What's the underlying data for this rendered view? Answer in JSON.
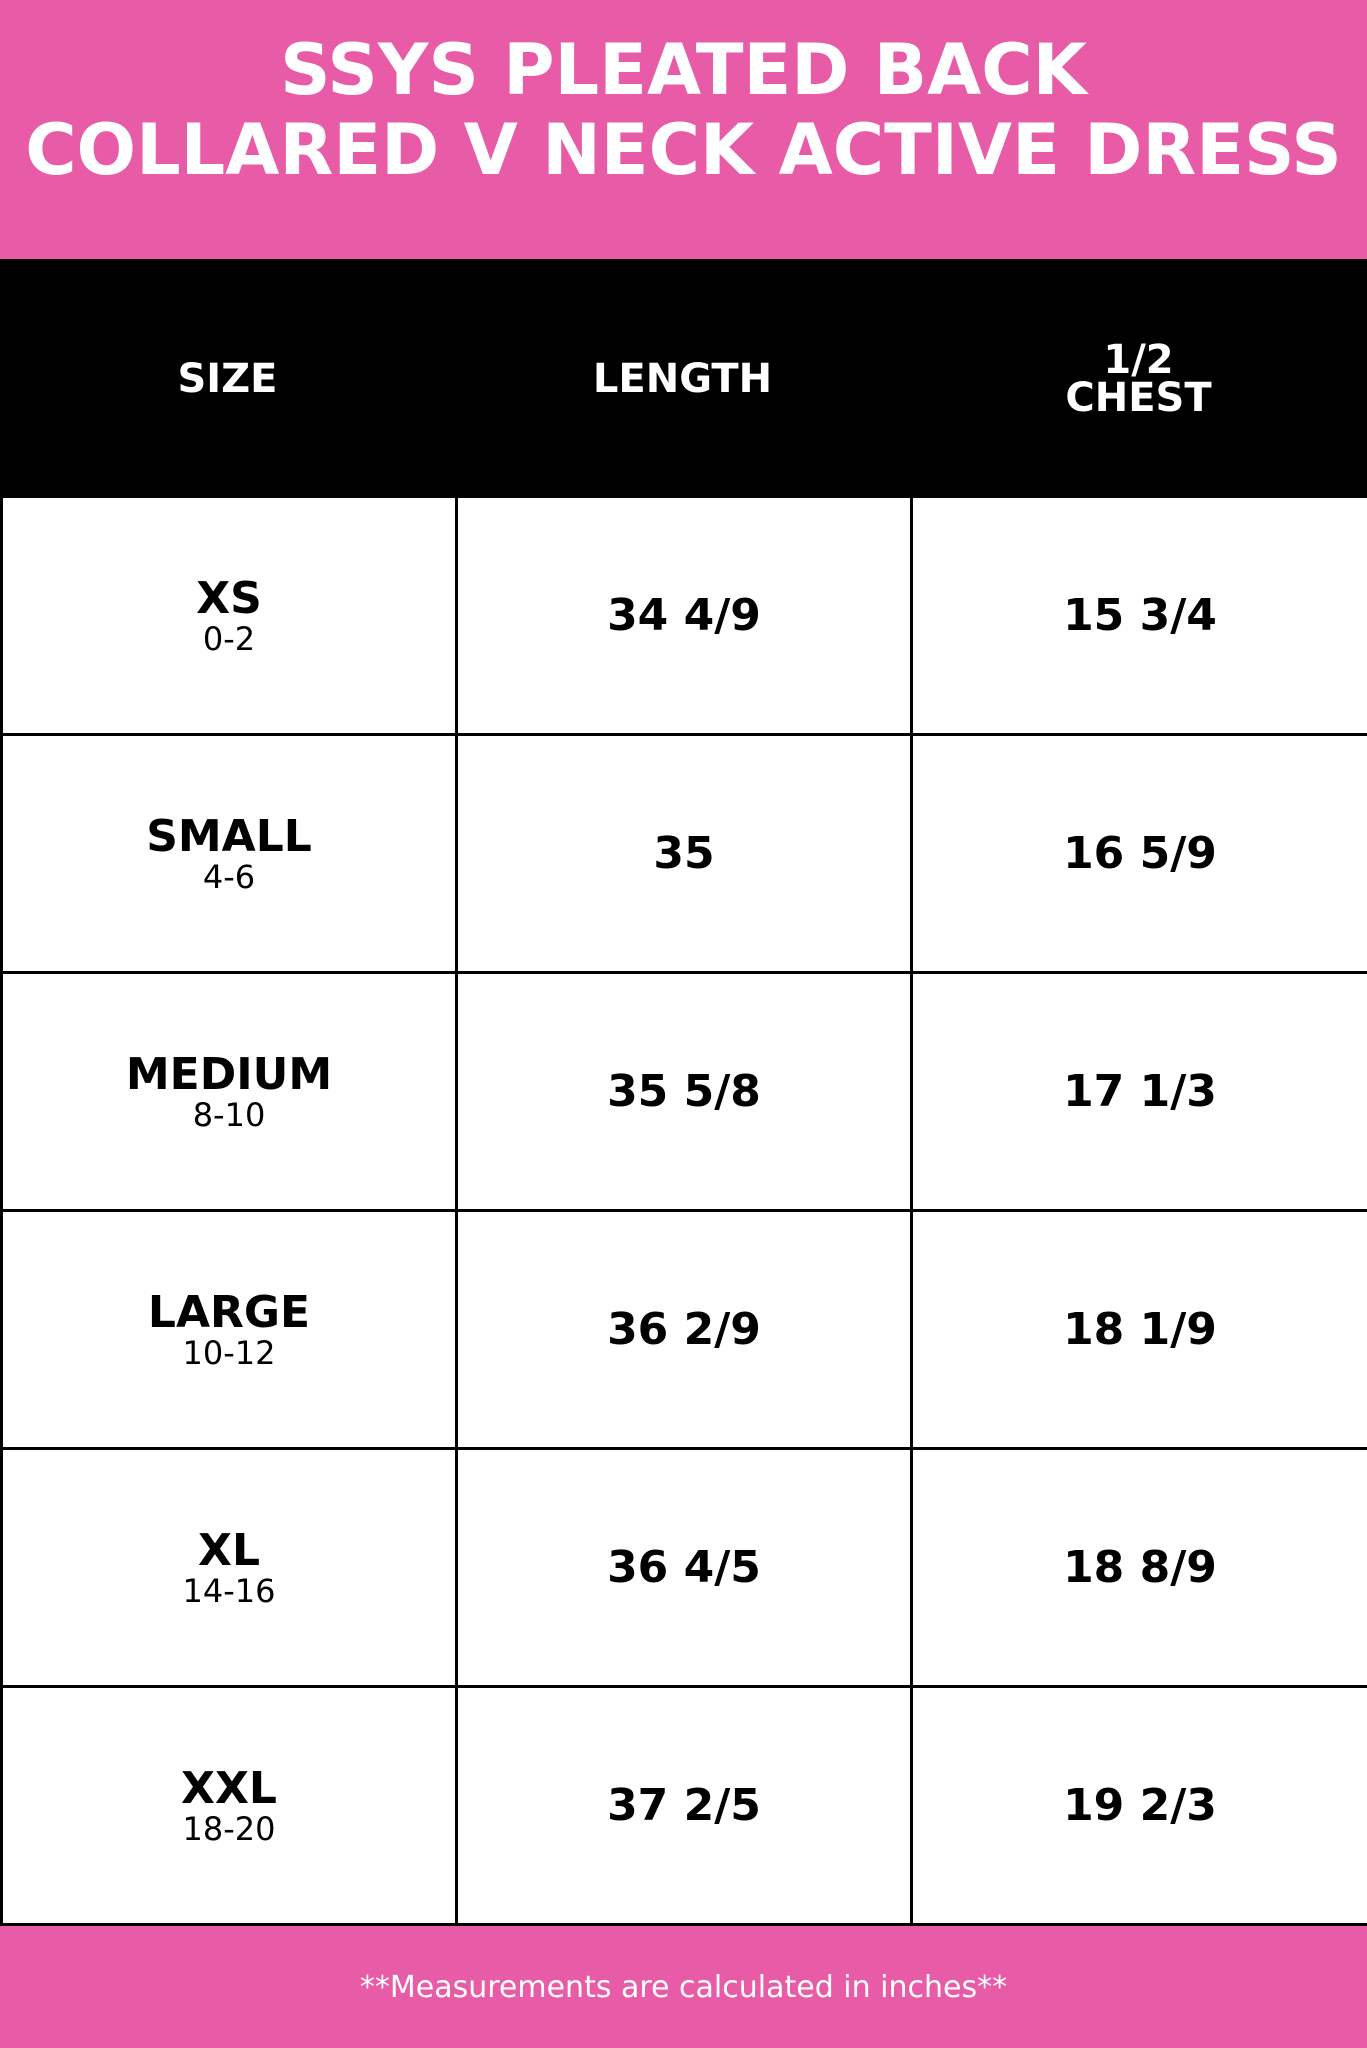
{
  "title": {
    "line1": "SSYS PLEATED BACK",
    "line2": "COLLARED V NECK ACTIVE DRESS"
  },
  "columns": {
    "size": "SIZE",
    "length": "LENGTH",
    "chest_line1": "1/2",
    "chest_line2": "CHEST"
  },
  "rows": [
    {
      "size": "XS",
      "range": "0-2",
      "length": "34 4/9",
      "chest": "15 3/4"
    },
    {
      "size": "SMALL",
      "range": "4-6",
      "length": "35",
      "chest": "16 5/9"
    },
    {
      "size": "MEDIUM",
      "range": "8-10",
      "length": "35 5/8",
      "chest": "17 1/3"
    },
    {
      "size": "LARGE",
      "range": "10-12",
      "length": "36 2/9",
      "chest": "18 1/9"
    },
    {
      "size": "XL",
      "range": "14-16",
      "length": "36 4/5",
      "chest": "18 8/9"
    },
    {
      "size": "XXL",
      "range": "18-20",
      "length": "37 2/5",
      "chest": "19 2/3"
    }
  ],
  "footer": "**Measurements are calculated in inches**",
  "colors": {
    "accent": "#e85ca7",
    "header_bg": "#000000"
  }
}
